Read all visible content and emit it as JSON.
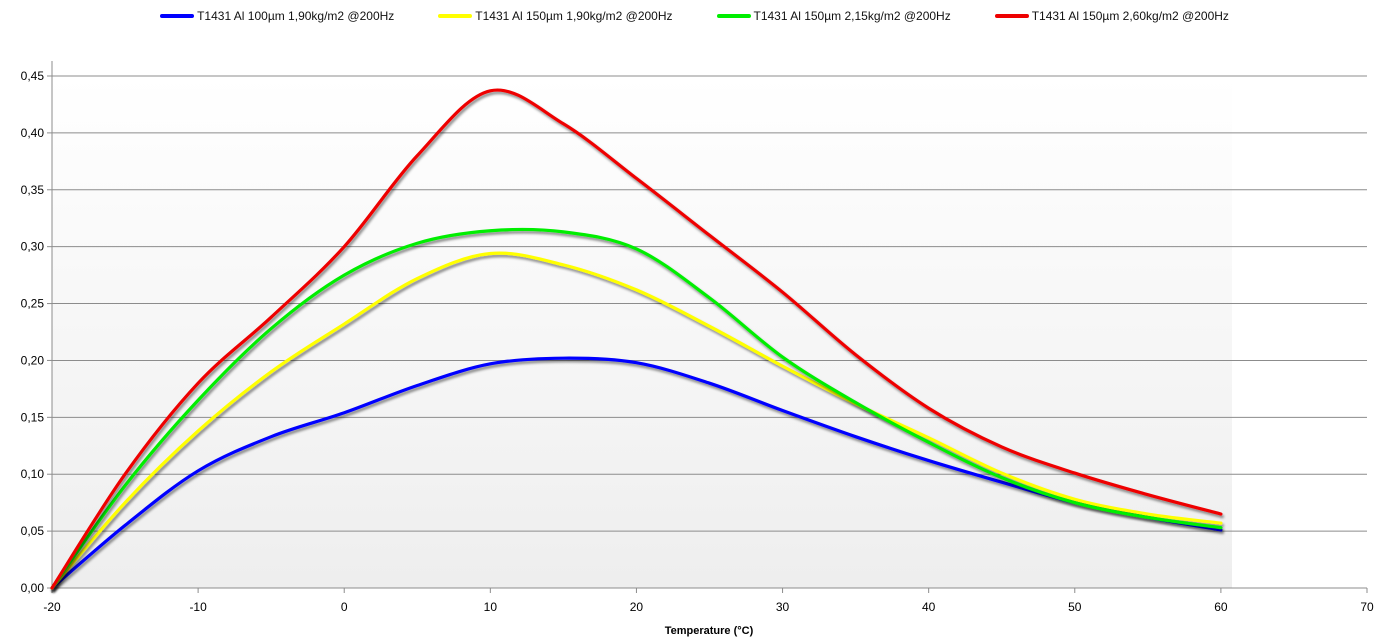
{
  "chart_data": {
    "type": "line",
    "title": "",
    "xlabel": "Temperature (°C)",
    "ylabel": "",
    "xlim": [
      -20,
      70
    ],
    "ylim": [
      0,
      0.45
    ],
    "x_ticks": [
      "-20",
      "-10",
      "0",
      "10",
      "20",
      "30",
      "40",
      "50",
      "60",
      "70"
    ],
    "y_ticks": [
      "0,00",
      "0,05",
      "0,10",
      "0,15",
      "0,20",
      "0,25",
      "0,30",
      "0,35",
      "0,40",
      "0,45"
    ],
    "grid": "horizontal",
    "legend_position": "top",
    "series": [
      {
        "name": "T1431 Al 100µm 1,90kg/m2 @200Hz",
        "color": "#0000ff",
        "x": [
          -20,
          -15,
          -10,
          -5,
          0,
          5,
          10,
          15,
          20,
          25,
          30,
          35,
          40,
          45,
          50,
          55,
          60
        ],
        "y": [
          0.0,
          0.055,
          0.103,
          0.133,
          0.154,
          0.178,
          0.197,
          0.202,
          0.198,
          0.18,
          0.156,
          0.133,
          0.112,
          0.093,
          0.075,
          0.062,
          0.051
        ]
      },
      {
        "name": "T1431 Al 150µm 1,90kg/m2 @200Hz",
        "color": "#ffff00",
        "x": [
          -20,
          -15,
          -10,
          -5,
          0,
          5,
          10,
          15,
          20,
          25,
          30,
          35,
          40,
          45,
          50,
          55,
          60
        ],
        "y": [
          0.0,
          0.075,
          0.138,
          0.19,
          0.232,
          0.272,
          0.294,
          0.284,
          0.262,
          0.23,
          0.195,
          0.162,
          0.132,
          0.101,
          0.078,
          0.065,
          0.057
        ]
      },
      {
        "name": "T1431 Al 150µm 2,15kg/m2 @200Hz",
        "color": "#00ee00",
        "x": [
          -20,
          -15,
          -10,
          -5,
          0,
          5,
          10,
          15,
          20,
          25,
          30,
          35,
          40,
          45,
          50,
          55,
          60
        ],
        "y": [
          0.0,
          0.09,
          0.165,
          0.228,
          0.275,
          0.303,
          0.314,
          0.313,
          0.298,
          0.255,
          0.203,
          0.163,
          0.128,
          0.097,
          0.075,
          0.062,
          0.053
        ]
      },
      {
        "name": "T1431 Al 150µm 2,60kg/m2 @200Hz",
        "color": "#ee0000",
        "x": [
          -20,
          -15,
          -10,
          -5,
          0,
          5,
          10,
          15,
          20,
          25,
          30,
          35,
          40,
          45,
          50,
          55,
          60
        ],
        "y": [
          0.0,
          0.1,
          0.18,
          0.238,
          0.3,
          0.38,
          0.437,
          0.408,
          0.36,
          0.31,
          0.26,
          0.205,
          0.158,
          0.124,
          0.101,
          0.082,
          0.065
        ]
      }
    ]
  }
}
